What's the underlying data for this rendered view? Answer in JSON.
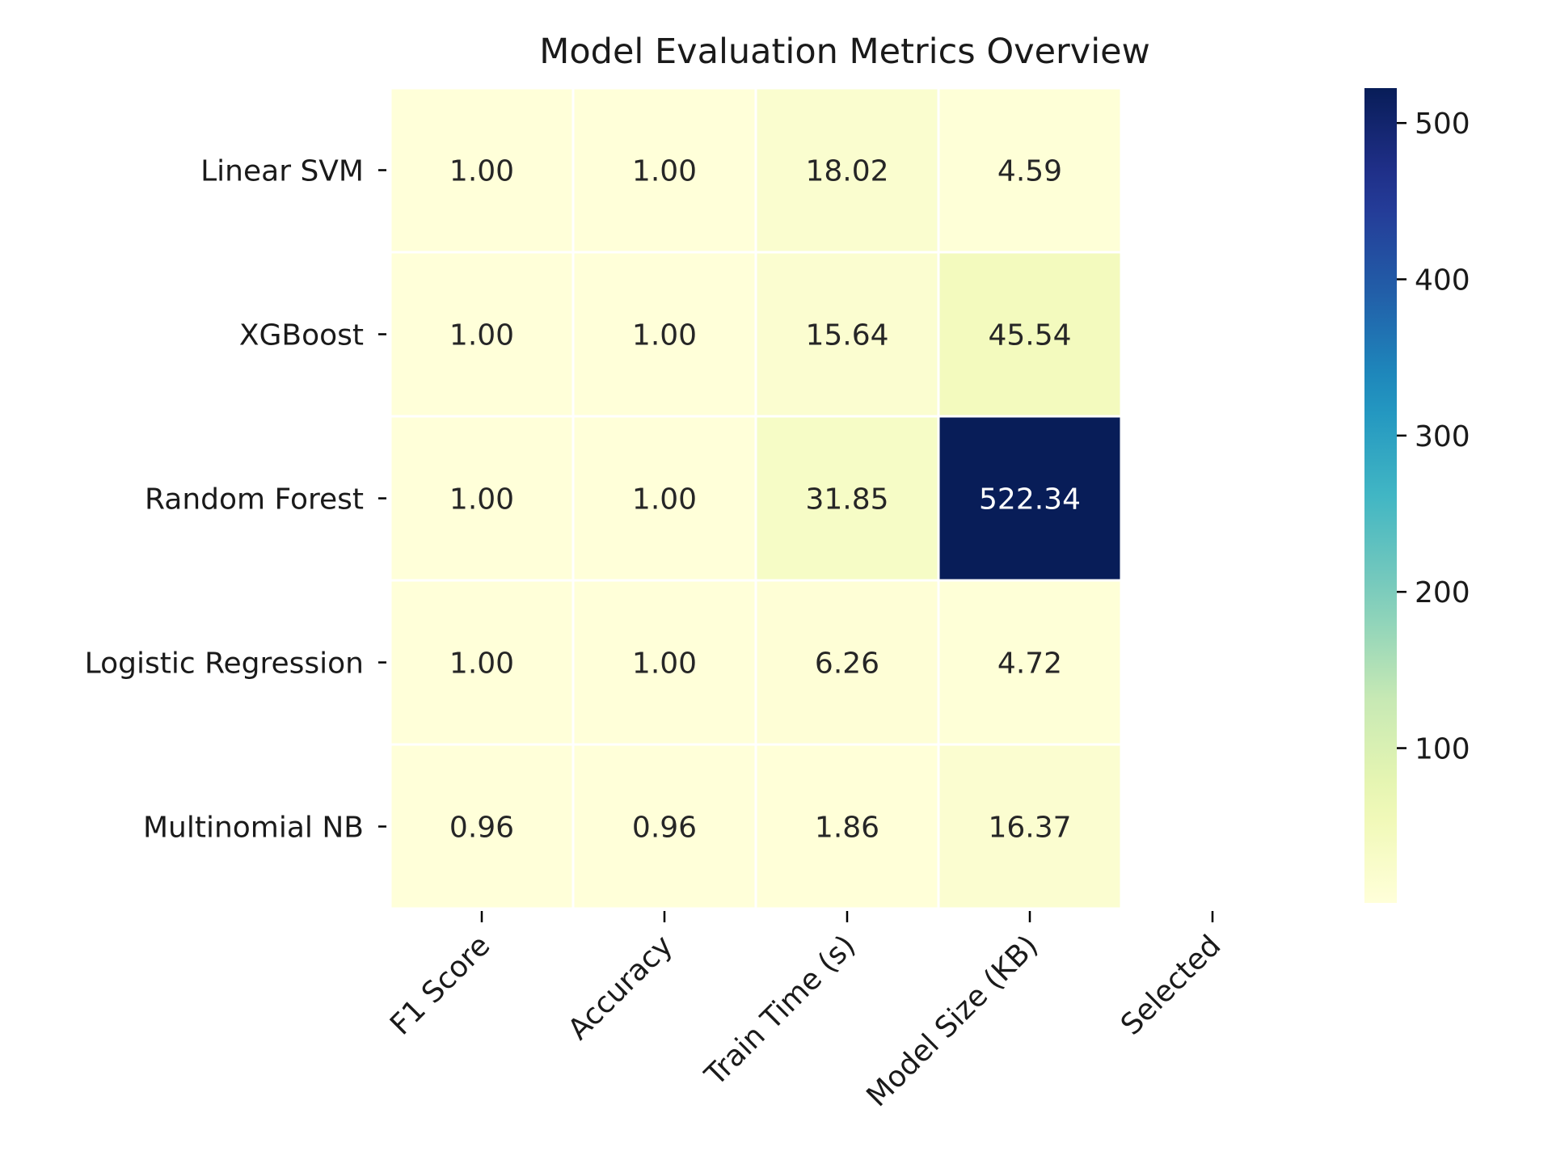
{
  "chart_data": {
    "type": "heatmap",
    "title": "Model Evaluation Metrics Overview",
    "rows": [
      "Linear SVM",
      "XGBoost",
      "Random Forest",
      "Logistic Regression",
      "Multinomial NB"
    ],
    "columns": [
      "F1 Score",
      "Accuracy",
      "Train Time (s)",
      "Model Size (KB)",
      "Selected"
    ],
    "values": [
      [
        1.0,
        1.0,
        18.02,
        4.59,
        null
      ],
      [
        1.0,
        1.0,
        15.64,
        45.54,
        null
      ],
      [
        1.0,
        1.0,
        31.85,
        522.34,
        null
      ],
      [
        1.0,
        1.0,
        6.26,
        4.72,
        null
      ],
      [
        0.96,
        0.96,
        1.86,
        16.37,
        null
      ]
    ],
    "labels": [
      [
        "1.00",
        "1.00",
        "18.02",
        "4.59",
        ""
      ],
      [
        "1.00",
        "1.00",
        "15.64",
        "45.54",
        ""
      ],
      [
        "1.00",
        "1.00",
        "31.85",
        "522.34",
        ""
      ],
      [
        "1.00",
        "1.00",
        "6.26",
        "4.72",
        ""
      ],
      [
        "0.96",
        "0.96",
        "1.86",
        "16.37",
        ""
      ]
    ],
    "colormap": "YlGnBu",
    "colorbar": {
      "range": [
        0.96,
        522.34
      ],
      "ticks": [
        100,
        200,
        300,
        400,
        500
      ],
      "tick_labels": [
        "100",
        "200",
        "300",
        "400",
        "500"
      ],
      "position": "right"
    },
    "grid": false
  }
}
